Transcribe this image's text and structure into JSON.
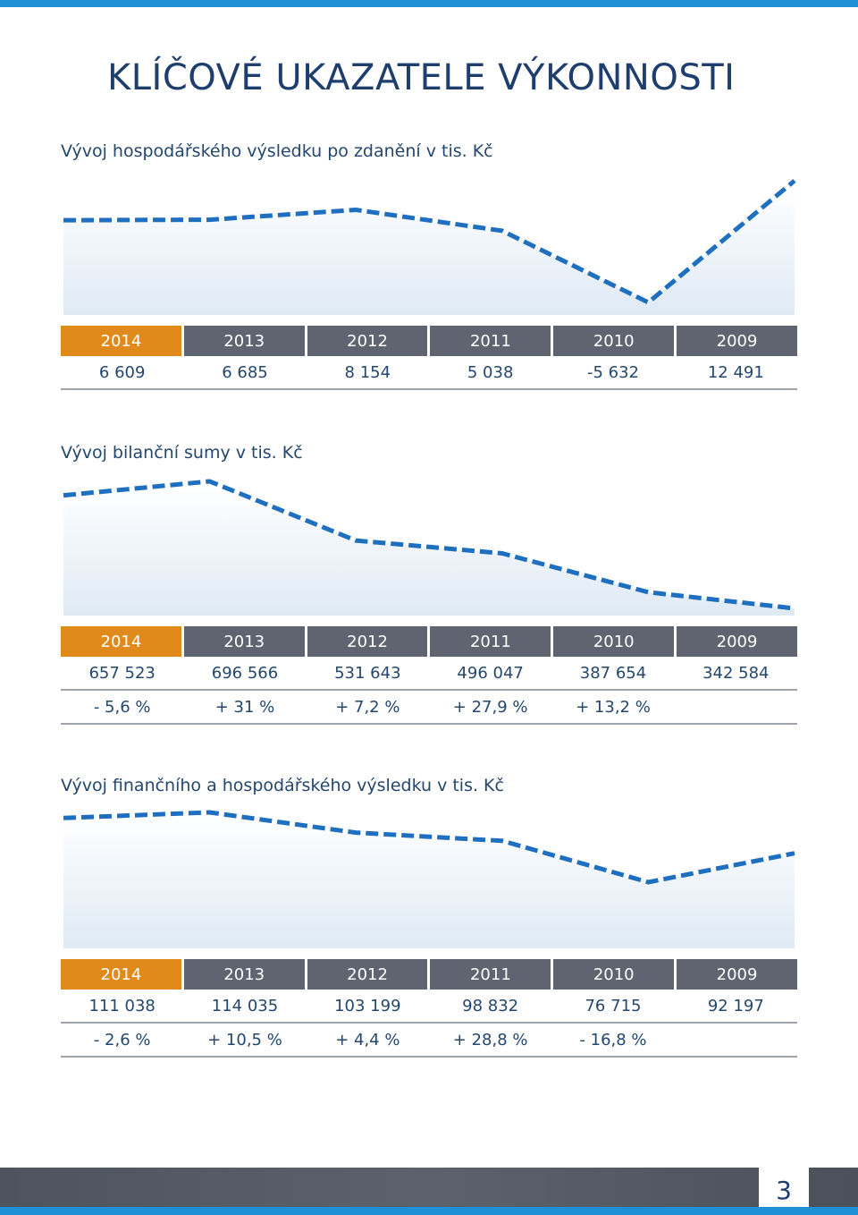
{
  "page_title": "KLÍČOVÉ UKAZATELE VÝKONNOSTI",
  "page_number": "3",
  "colors": {
    "accent_blue": "#1f6fc0",
    "current_year": "#e08a1c",
    "year_header": "#5f6470",
    "text": "#24476e"
  },
  "sections": [
    {
      "title": "Vývoj hospodářského výsledku po zdanění v tis. Kč",
      "years": [
        "2014",
        "2013",
        "2012",
        "2011",
        "2010",
        "2009"
      ],
      "rows": [
        [
          "6 609",
          "6 685",
          "8 154",
          "5 038",
          "-5 632",
          "12 491"
        ]
      ]
    },
    {
      "title": "Vývoj bilanční sumy v tis. Kč",
      "years": [
        "2014",
        "2013",
        "2012",
        "2011",
        "2010",
        "2009"
      ],
      "rows": [
        [
          "657 523",
          "696 566",
          "531 643",
          "496 047",
          "387 654",
          "342 584"
        ],
        [
          "- 5,6 %",
          "+ 31 %",
          "+ 7,2 %",
          "+ 27,9 %",
          "+ 13,2 %",
          ""
        ]
      ]
    },
    {
      "title": "Vývoj finančního a hospodářského výsledku v tis. Kč",
      "years": [
        "2014",
        "2013",
        "2012",
        "2011",
        "2010",
        "2009"
      ],
      "rows": [
        [
          "111 038",
          "114 035",
          "103 199",
          "98 832",
          "76 715",
          "92 197"
        ],
        [
          "- 2,6 %",
          "+ 10,5 %",
          "+ 4,4 %",
          "+ 28,8 %",
          "- 16,8 %",
          ""
        ]
      ]
    }
  ],
  "chart_data": [
    {
      "type": "area",
      "categories": [
        "2014",
        "2013",
        "2012",
        "2011",
        "2010",
        "2009"
      ],
      "values": [
        6609,
        6685,
        8154,
        5038,
        -5632,
        12491
      ]
    },
    {
      "type": "area",
      "categories": [
        "2014",
        "2013",
        "2012",
        "2011",
        "2010",
        "2009"
      ],
      "values": [
        657523,
        696566,
        531643,
        496047,
        387654,
        342584
      ]
    },
    {
      "type": "area",
      "categories": [
        "2014",
        "2013",
        "2012",
        "2011",
        "2010",
        "2009"
      ],
      "values": [
        111038,
        114035,
        103199,
        98832,
        76715,
        92197
      ]
    }
  ]
}
